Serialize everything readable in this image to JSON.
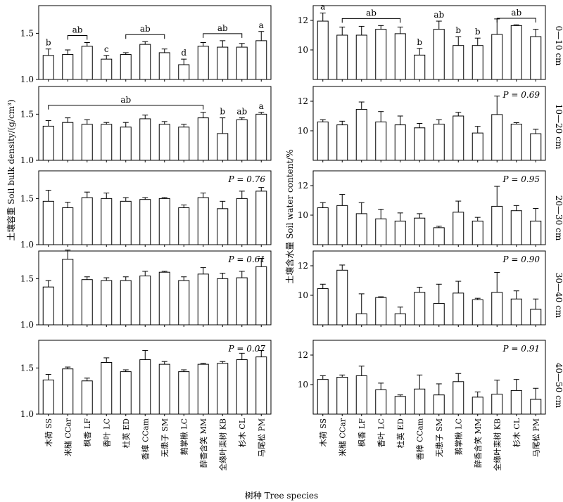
{
  "figure": {
    "xlabel": "树种  Tree species",
    "ylabel_left": "土壤容重  Soil bulk density/(g/cm³)",
    "ylabel_right": "土壤含水量  Soil water content/%"
  },
  "species": [
    "木荷 SS",
    "米槠 CCar",
    "枫香 LF",
    "香叶 LC",
    "杜英 ED",
    "香樟 CCam",
    "无患子 SM",
    "鹅掌楸 LC",
    "醉香含笑 MM",
    "全缘叶栾树 KB",
    "杉木 CL",
    "马尾松 PM"
  ],
  "depths": [
    "0—10 cm",
    "10—20 cm",
    "20—30 cm",
    "30—40 cm",
    "40—50 cm"
  ],
  "chart_data": [
    {
      "type": "bar",
      "panel": "bulk-density-0-10",
      "depth": "0—10 cm",
      "ylim": [
        1.0,
        1.8
      ],
      "yticks": [
        1.0,
        1.5
      ],
      "values": [
        1.26,
        1.27,
        1.36,
        1.22,
        1.27,
        1.38,
        1.29,
        1.16,
        1.36,
        1.35,
        1.35,
        1.42
      ],
      "errors": [
        0.07,
        0.05,
        0.04,
        0.04,
        0.02,
        0.03,
        0.04,
        0.06,
        0.04,
        0.07,
        0.04,
        0.1
      ],
      "letters": [
        "b",
        "",
        "",
        "c",
        "",
        "",
        "",
        "d",
        "",
        "",
        "",
        "a"
      ],
      "brackets": [
        {
          "from": 1,
          "to": 2,
          "label": "ab"
        },
        {
          "from": 4,
          "to": 6,
          "label": "ab"
        },
        {
          "from": 8,
          "to": 10,
          "label": "ab"
        }
      ]
    },
    {
      "type": "bar",
      "panel": "bulk-density-10-20",
      "depth": "10—20 cm",
      "ylim": [
        1.0,
        1.8
      ],
      "yticks": [
        1.0,
        1.5
      ],
      "values": [
        1.37,
        1.41,
        1.39,
        1.39,
        1.36,
        1.45,
        1.39,
        1.36,
        1.46,
        1.29,
        1.44,
        1.5
      ],
      "errors": [
        0.06,
        0.05,
        0.05,
        0.02,
        0.05,
        0.04,
        0.03,
        0.03,
        0.06,
        0.17,
        0.02,
        0.02
      ],
      "letters": [
        "",
        "",
        "",
        "",
        "",
        "",
        "",
        "",
        "",
        "b",
        "ab",
        "a"
      ],
      "brackets": [
        {
          "from": 0,
          "to": 8,
          "label": "ab"
        }
      ]
    },
    {
      "type": "bar",
      "panel": "bulk-density-20-30",
      "depth": "20—30 cm",
      "ylim": [
        1.0,
        1.8
      ],
      "yticks": [
        1.0,
        1.5
      ],
      "p_value": "P = 0.76",
      "values": [
        1.47,
        1.4,
        1.51,
        1.5,
        1.47,
        1.49,
        1.5,
        1.4,
        1.51,
        1.39,
        1.5,
        1.58
      ],
      "errors": [
        0.12,
        0.06,
        0.06,
        0.06,
        0.04,
        0.02,
        0.01,
        0.03,
        0.05,
        0.08,
        0.08,
        0.04
      ]
    },
    {
      "type": "bar",
      "panel": "bulk-density-30-40",
      "depth": "30—40 cm",
      "ylim": [
        1.0,
        1.8
      ],
      "yticks": [
        1.0,
        1.5
      ],
      "p_value": "P = 0.61",
      "values": [
        1.41,
        1.71,
        1.49,
        1.48,
        1.48,
        1.53,
        1.57,
        1.48,
        1.55,
        1.5,
        1.51,
        1.63
      ],
      "errors": [
        0.07,
        0.1,
        0.03,
        0.03,
        0.04,
        0.05,
        0.01,
        0.04,
        0.07,
        0.06,
        0.07,
        0.09
      ]
    },
    {
      "type": "bar",
      "panel": "bulk-density-40-50",
      "depth": "40—50 cm",
      "ylim": [
        1.0,
        1.8
      ],
      "yticks": [
        1.0,
        1.5
      ],
      "p_value": "P = 0.07",
      "values": [
        1.37,
        1.49,
        1.36,
        1.56,
        1.46,
        1.59,
        1.54,
        1.46,
        1.54,
        1.55,
        1.59,
        1.62
      ],
      "errors": [
        0.06,
        0.02,
        0.03,
        0.05,
        0.02,
        0.1,
        0.03,
        0.02,
        0.01,
        0.02,
        0.07,
        0.07
      ]
    },
    {
      "type": "bar",
      "panel": "water-content-0-10",
      "depth": "0—10 cm",
      "ylim": [
        8.0,
        13.0
      ],
      "yticks": [
        10,
        12
      ],
      "values": [
        11.95,
        11.0,
        11.0,
        11.4,
        11.1,
        9.65,
        11.4,
        10.3,
        10.3,
        11.05,
        11.65,
        10.9
      ],
      "errors": [
        0.55,
        0.55,
        0.6,
        0.25,
        0.45,
        0.45,
        0.55,
        0.6,
        0.5,
        1.05,
        0.05,
        0.5
      ],
      "letters": [
        "a",
        "",
        "",
        "",
        "",
        "b",
        "ab",
        "b",
        "b",
        "",
        "",
        ""
      ],
      "brackets": [
        {
          "from": 1,
          "to": 4,
          "label": "ab"
        },
        {
          "from": 9,
          "to": 11,
          "label": "ab"
        }
      ]
    },
    {
      "type": "bar",
      "panel": "water-content-10-20",
      "depth": "10—20 cm",
      "ylim": [
        8.0,
        13.0
      ],
      "yticks": [
        10,
        12
      ],
      "p_value": "P = 0.69",
      "values": [
        10.6,
        10.4,
        11.45,
        10.6,
        10.4,
        10.2,
        10.45,
        11.0,
        9.85,
        11.1,
        10.45,
        9.8
      ],
      "errors": [
        0.15,
        0.25,
        0.5,
        0.7,
        0.6,
        0.3,
        0.3,
        0.25,
        0.45,
        1.25,
        0.1,
        0.3
      ]
    },
    {
      "type": "bar",
      "panel": "water-content-20-30",
      "depth": "20—30 cm",
      "ylim": [
        8.0,
        13.0
      ],
      "yticks": [
        10,
        12
      ],
      "p_value": "P = 0.95",
      "values": [
        10.5,
        10.65,
        10.1,
        9.75,
        9.6,
        9.8,
        9.15,
        10.2,
        9.6,
        10.6,
        10.3,
        9.6
      ],
      "errors": [
        0.35,
        0.75,
        0.75,
        0.65,
        0.55,
        0.3,
        0.1,
        0.75,
        0.25,
        1.35,
        0.35,
        0.85
      ]
    },
    {
      "type": "bar",
      "panel": "water-content-30-40",
      "depth": "30—40 cm",
      "ylim": [
        8.0,
        13.0
      ],
      "yticks": [
        10,
        12
      ],
      "p_value": "P = 0.90",
      "values": [
        10.45,
        11.7,
        8.75,
        9.85,
        8.75,
        10.2,
        9.45,
        10.15,
        9.7,
        10.2,
        9.75,
        9.05
      ],
      "errors": [
        0.3,
        0.35,
        1.35,
        0.05,
        0.45,
        0.35,
        1.3,
        0.8,
        0.1,
        1.35,
        0.55,
        0.7
      ]
    },
    {
      "type": "bar",
      "panel": "water-content-40-50",
      "depth": "40—50 cm",
      "ylim": [
        8.0,
        13.0
      ],
      "yticks": [
        10,
        12
      ],
      "p_value": "P = 0.91",
      "values": [
        10.35,
        10.5,
        10.6,
        9.65,
        9.2,
        9.7,
        9.3,
        10.2,
        9.15,
        9.35,
        9.6,
        9.0
      ],
      "errors": [
        0.25,
        0.15,
        0.65,
        0.45,
        0.1,
        0.95,
        0.75,
        0.55,
        0.35,
        0.95,
        0.75,
        0.75
      ]
    }
  ]
}
